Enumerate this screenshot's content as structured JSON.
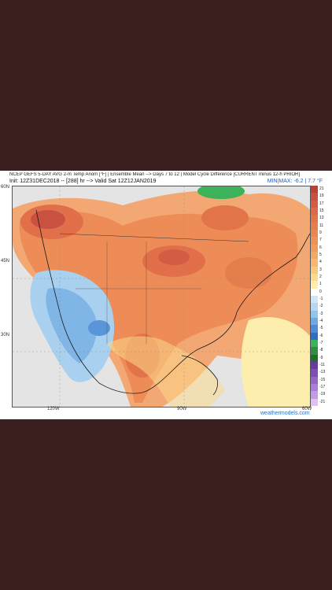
{
  "header": {
    "line1": "NCEP GEFS 5-DAY AVG 2-m Temp Anom [°F] | Ensemble Mean --> Days 7 to 12 | Model Cycle Difference [CURRENT minus 12-h PRIOR]",
    "line2": "Init: 12Z31DEC2018 -- [288] hr --> Valid Sat 12Z12JAN2019",
    "minmax": "MIN|MAX: -6.2 | 7.7 °F"
  },
  "axes": {
    "lat_labels": [
      "60N",
      "45N",
      "30N"
    ],
    "lon_labels": [
      "120W",
      "90W",
      "60W"
    ]
  },
  "credit": "weathermodels.com",
  "legend": {
    "values": [
      "21",
      "19",
      "17",
      "15",
      "13",
      "11",
      "9",
      "7",
      "6",
      "5",
      "4",
      "3",
      "2",
      "1",
      "0",
      "-1",
      "-2",
      "-3",
      "-4",
      "-5",
      "-6",
      "-7",
      "-8",
      "-9",
      "-11",
      "-13",
      "-15",
      "-17",
      "-19",
      "-21"
    ],
    "colors": [
      "#b8413a",
      "#c75040",
      "#d25c44",
      "#dc6a48",
      "#e2744a",
      "#e57e4d",
      "#e88752",
      "#ec9157",
      "#ef9b5e",
      "#f2a866",
      "#f5b870",
      "#f8c97c",
      "#fada8c",
      "#fdeeae",
      "#ffffff",
      "#cfe6f7",
      "#b4d8f2",
      "#94c4ec",
      "#6fa8e2",
      "#4d8bd6",
      "#2d6dc3",
      "#3cb35a",
      "#2f8f3f",
      "#1f6e2c",
      "#6a3aa0",
      "#7d4fb5",
      "#9365c8",
      "#aa7ed8",
      "#c39ae6",
      "#e0c0f2"
    ]
  },
  "map": {
    "background": "#f2f2f2",
    "ocean": "#e6e6e6"
  }
}
